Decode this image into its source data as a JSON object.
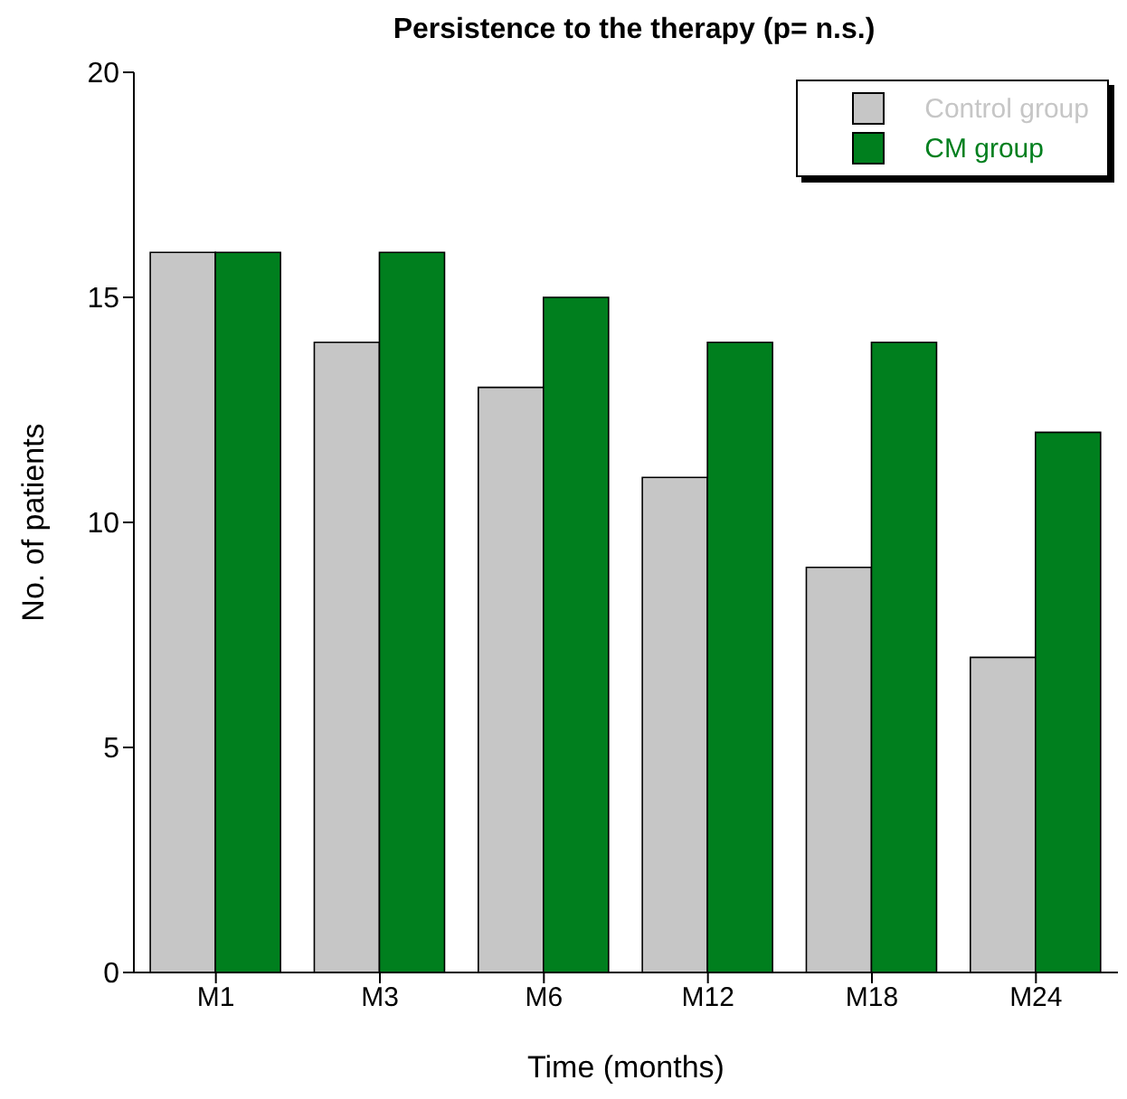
{
  "chart_data": {
    "type": "bar",
    "title": "Persistence to the therapy (p= n.s.)",
    "xlabel": "Time (months)",
    "ylabel": "No. of patients",
    "categories": [
      "M1",
      "M3",
      "M6",
      "M12",
      "M18",
      "M24"
    ],
    "series": [
      {
        "name": "Control group",
        "color": "#c6c6c6",
        "values": [
          16,
          14,
          13,
          11,
          9,
          7
        ]
      },
      {
        "name": "CM group",
        "color": "#007f1e",
        "values": [
          16,
          16,
          15,
          14,
          14,
          12
        ]
      }
    ],
    "ylim": [
      0,
      20
    ],
    "yticks": [
      0,
      5,
      10,
      15,
      20
    ],
    "grid": false,
    "legend": "top right"
  }
}
